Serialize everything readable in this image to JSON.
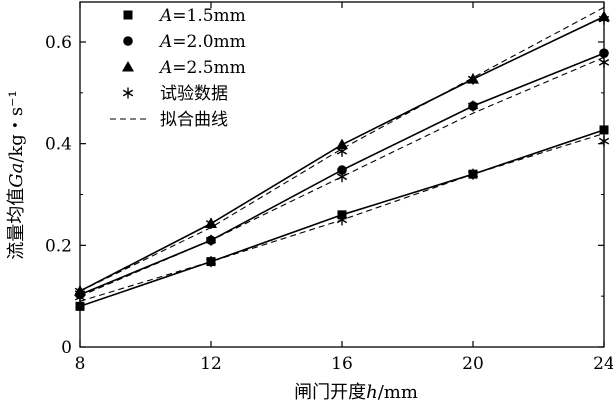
{
  "chart_data": {
    "type": "line",
    "title": "",
    "xlabel": {
      "prefix": "闸门开度",
      "var": "h",
      "suffix": "/mm"
    },
    "ylabel": {
      "prefix": "流量均值",
      "var": "Ga",
      "suffix": "/kg・s⁻¹"
    },
    "xlim": [
      8,
      24
    ],
    "ylim": [
      0,
      0.6
    ],
    "xticks": [
      8,
      12,
      16,
      20,
      24
    ],
    "xtick_labels": [
      "8",
      "12",
      "16",
      "20",
      "24"
    ],
    "yticks": [
      0,
      0.2,
      0.4,
      0.6
    ],
    "ytick_labels": [
      "0",
      "0.2",
      "0.4",
      "0.6"
    ],
    "grid": false,
    "legend_position": "top-left",
    "x": [
      8,
      12,
      16,
      20,
      24
    ],
    "series": [
      {
        "name": "A=1.5mm",
        "var": "A",
        "rest": "=1.5mm",
        "marker": "square",
        "values": [
          0.08,
          0.168,
          0.26,
          0.34,
          0.427
        ]
      },
      {
        "name": "A=2.0mm",
        "var": "A",
        "rest": "=2.0mm",
        "marker": "circle",
        "values": [
          0.103,
          0.21,
          0.348,
          0.474,
          0.578
        ]
      },
      {
        "name": "A=2.5mm",
        "var": "A",
        "rest": "=2.5mm",
        "marker": "triangle",
        "values": [
          0.11,
          0.243,
          0.398,
          0.527,
          0.65
        ]
      }
    ],
    "test_data": {
      "name": "试验数据",
      "marker": "asterisk",
      "series": [
        [
          0.098,
          0.168,
          0.25,
          0.34,
          0.405
        ],
        [
          0.105,
          0.21,
          0.335,
          0.474,
          0.56
        ],
        [
          0.11,
          0.243,
          0.385,
          0.527,
          0.645
        ]
      ]
    },
    "fit": {
      "name": "拟合曲线",
      "style": "dashed",
      "series": [
        [
          0.09,
          0.168,
          0.25,
          0.34,
          0.42
        ],
        [
          0.1,
          0.21,
          0.335,
          0.46,
          0.57
        ],
        [
          0.11,
          0.235,
          0.39,
          0.53,
          0.668
        ]
      ]
    }
  }
}
